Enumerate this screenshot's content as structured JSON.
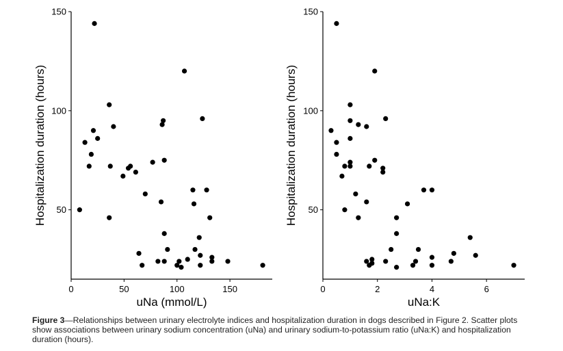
{
  "chart_data": [
    {
      "type": "scatter",
      "title": "",
      "xlabel": "uNa (mmol/L)",
      "ylabel": "Hospitalization duration (hours)",
      "xlim": [
        0,
        190
      ],
      "ylim": [
        15,
        150
      ],
      "xticks": [
        0,
        50,
        100,
        150
      ],
      "yticks": [
        50,
        100,
        150
      ],
      "grid": false,
      "points": [
        [
          22,
          144
        ],
        [
          107,
          120
        ],
        [
          36,
          103
        ],
        [
          124,
          96
        ],
        [
          87,
          95
        ],
        [
          86,
          93
        ],
        [
          40,
          92
        ],
        [
          21,
          90
        ],
        [
          25,
          86
        ],
        [
          13,
          84
        ],
        [
          19,
          78
        ],
        [
          88,
          75
        ],
        [
          77,
          74
        ],
        [
          17,
          72
        ],
        [
          37,
          72
        ],
        [
          56,
          72
        ],
        [
          54,
          71
        ],
        [
          61,
          69
        ],
        [
          49,
          67
        ],
        [
          115,
          60
        ],
        [
          128,
          60
        ],
        [
          70,
          58
        ],
        [
          85,
          54
        ],
        [
          116,
          53
        ],
        [
          8,
          50
        ],
        [
          36,
          46
        ],
        [
          131,
          46
        ],
        [
          88,
          38
        ],
        [
          121,
          36
        ],
        [
          91,
          30
        ],
        [
          117,
          30
        ],
        [
          64,
          28
        ],
        [
          122,
          27
        ],
        [
          133,
          26
        ],
        [
          82,
          24
        ],
        [
          88,
          24
        ],
        [
          110,
          25
        ],
        [
          102,
          24
        ],
        [
          133,
          24
        ],
        [
          148,
          24
        ],
        [
          67,
          22
        ],
        [
          100,
          22
        ],
        [
          104,
          21
        ],
        [
          122,
          22
        ],
        [
          181,
          22
        ]
      ]
    },
    {
      "type": "scatter",
      "title": "",
      "xlabel": "uNa:K",
      "ylabel": "Hospitalization duration (hours)",
      "xlim": [
        0,
        7.4
      ],
      "ylim": [
        15,
        150
      ],
      "xticks": [
        0,
        2,
        4,
        6
      ],
      "yticks": [
        50,
        100,
        150
      ],
      "grid": false,
      "points": [
        [
          0.5,
          144
        ],
        [
          1.9,
          120
        ],
        [
          1.0,
          103
        ],
        [
          2.3,
          96
        ],
        [
          1.0,
          95
        ],
        [
          1.3,
          93
        ],
        [
          1.6,
          92
        ],
        [
          0.3,
          90
        ],
        [
          1.0,
          86
        ],
        [
          0.5,
          84
        ],
        [
          0.5,
          78
        ],
        [
          1.9,
          75
        ],
        [
          1.0,
          74
        ],
        [
          0.8,
          72
        ],
        [
          1.0,
          72
        ],
        [
          1.7,
          72
        ],
        [
          2.2,
          71
        ],
        [
          2.2,
          69
        ],
        [
          0.7,
          67
        ],
        [
          3.7,
          60
        ],
        [
          4.0,
          60
        ],
        [
          1.2,
          58
        ],
        [
          1.6,
          54
        ],
        [
          3.1,
          53
        ],
        [
          0.8,
          50
        ],
        [
          1.3,
          46
        ],
        [
          2.7,
          46
        ],
        [
          2.7,
          38
        ],
        [
          5.4,
          36
        ],
        [
          2.5,
          30
        ],
        [
          3.5,
          30
        ],
        [
          4.8,
          28
        ],
        [
          5.6,
          27
        ],
        [
          4.0,
          26
        ],
        [
          1.6,
          24
        ],
        [
          1.8,
          25
        ],
        [
          2.3,
          24
        ],
        [
          3.4,
          24
        ],
        [
          4.7,
          24
        ],
        [
          1.7,
          22
        ],
        [
          1.8,
          23
        ],
        [
          2.7,
          21
        ],
        [
          3.3,
          22
        ],
        [
          4.0,
          22
        ],
        [
          7.0,
          22
        ]
      ]
    }
  ],
  "caption": {
    "label": "Figure 3",
    "text": "—Relationships between urinary electrolyte indices and hospitalization duration in dogs described in Figure 2. Scatter plots show associations between urinary sodium concentration (uNa) and urinary sodium-to-potassium ratio (uNa:K) and hospitalization duration (hours)."
  }
}
